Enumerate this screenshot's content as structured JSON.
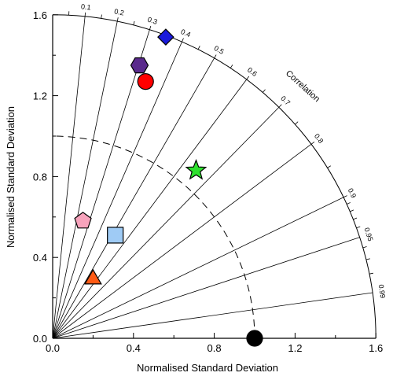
{
  "chart_data": {
    "type": "taylor-diagram",
    "xlabel": "Normalised Standard Deviation",
    "ylabel": "Normalised Standard Deviation",
    "xlim": [
      0,
      1.6
    ],
    "ylim": [
      0,
      1.6
    ],
    "x_ticks": [
      "0.0",
      "0.4",
      "0.8",
      "1.2",
      "1.6"
    ],
    "y_ticks": [
      "0.0",
      "0.4",
      "0.8",
      "1.2",
      "1.6"
    ],
    "correlation_title": "Correlation",
    "correlation_ticks": [
      "0.1",
      "0.2",
      "0.3",
      "0.4",
      "0.5",
      "0.6",
      "0.7",
      "0.8",
      "0.9",
      "0.95",
      "0.99"
    ],
    "reference_std": 1.0,
    "reference_marker": {
      "x": 1.0,
      "y": 0.0,
      "color": "#000000",
      "shape": "circle"
    },
    "points": [
      {
        "shape": "diamond",
        "color": "#1a1adc",
        "x": 0.56,
        "y": 1.49
      },
      {
        "shape": "hexagon",
        "color": "#5a2a8c",
        "x": 0.43,
        "y": 1.35
      },
      {
        "shape": "circle",
        "color": "#ff0000",
        "x": 0.46,
        "y": 1.27
      },
      {
        "shape": "star",
        "color": "#2ee02e",
        "x": 0.71,
        "y": 0.83
      },
      {
        "shape": "pentagon",
        "color": "#f7a3bc",
        "x": 0.15,
        "y": 0.58
      },
      {
        "shape": "square",
        "color": "#9fcbf5",
        "x": 0.31,
        "y": 0.51
      },
      {
        "shape": "triangle",
        "color": "#ff5a14",
        "x": 0.2,
        "y": 0.3
      }
    ]
  }
}
